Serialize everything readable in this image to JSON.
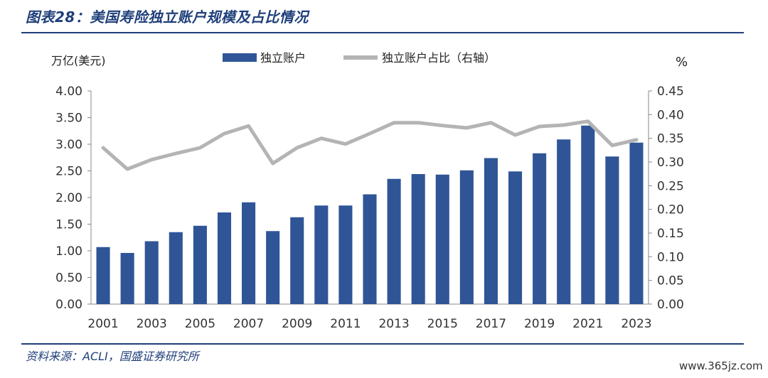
{
  "header": {
    "title": "图表28：美国寿险独立账户规模及占比情况"
  },
  "footer": {
    "source": "资料来源：ACLI，国盛证券研究所",
    "watermark": "www.365jz.com"
  },
  "chart_data": {
    "type": "bar",
    "categories": [
      "2001",
      "2002",
      "2003",
      "2004",
      "2005",
      "2006",
      "2007",
      "2008",
      "2009",
      "2010",
      "2011",
      "2012",
      "2013",
      "2014",
      "2015",
      "2016",
      "2017",
      "2018",
      "2019",
      "2020",
      "2021",
      "2022",
      "2023"
    ],
    "x_tick_labels": [
      "2001",
      "2003",
      "2005",
      "2007",
      "2009",
      "2011",
      "2013",
      "2015",
      "2017",
      "2019",
      "2021",
      "2023"
    ],
    "y_left_label": "万亿(美元)",
    "y_right_label": "%",
    "y_left_ticks": [
      "4.00",
      "3.50",
      "3.00",
      "2.50",
      "2.00",
      "1.50",
      "1.00",
      "0.50",
      "0.00"
    ],
    "y_right_ticks": [
      "0.45",
      "0.40",
      "0.35",
      "0.30",
      "0.25",
      "0.20",
      "0.15",
      "0.10",
      "0.05",
      "0.00"
    ],
    "ylim_left": [
      0,
      4
    ],
    "ylim_right": [
      0,
      0.45
    ],
    "series": [
      {
        "name": "独立账户",
        "kind": "bar",
        "axis": "left",
        "color": "#2f5597",
        "values": [
          1.07,
          0.96,
          1.18,
          1.35,
          1.47,
          1.72,
          1.91,
          1.37,
          1.63,
          1.85,
          1.85,
          2.06,
          2.35,
          2.44,
          2.43,
          2.51,
          2.74,
          2.49,
          2.83,
          3.09,
          3.35,
          2.77,
          3.03
        ]
      },
      {
        "name": "独立账户占比（右轴）",
        "kind": "line",
        "axis": "right",
        "color": "#b4b4b4",
        "values": [
          0.33,
          0.285,
          0.305,
          0.318,
          0.33,
          0.36,
          0.376,
          0.297,
          0.33,
          0.35,
          0.338,
          0.36,
          0.383,
          0.383,
          0.377,
          0.372,
          0.383,
          0.357,
          0.375,
          0.378,
          0.386,
          0.335,
          0.347
        ]
      }
    ],
    "legend_position": "top-center",
    "grid": false
  }
}
